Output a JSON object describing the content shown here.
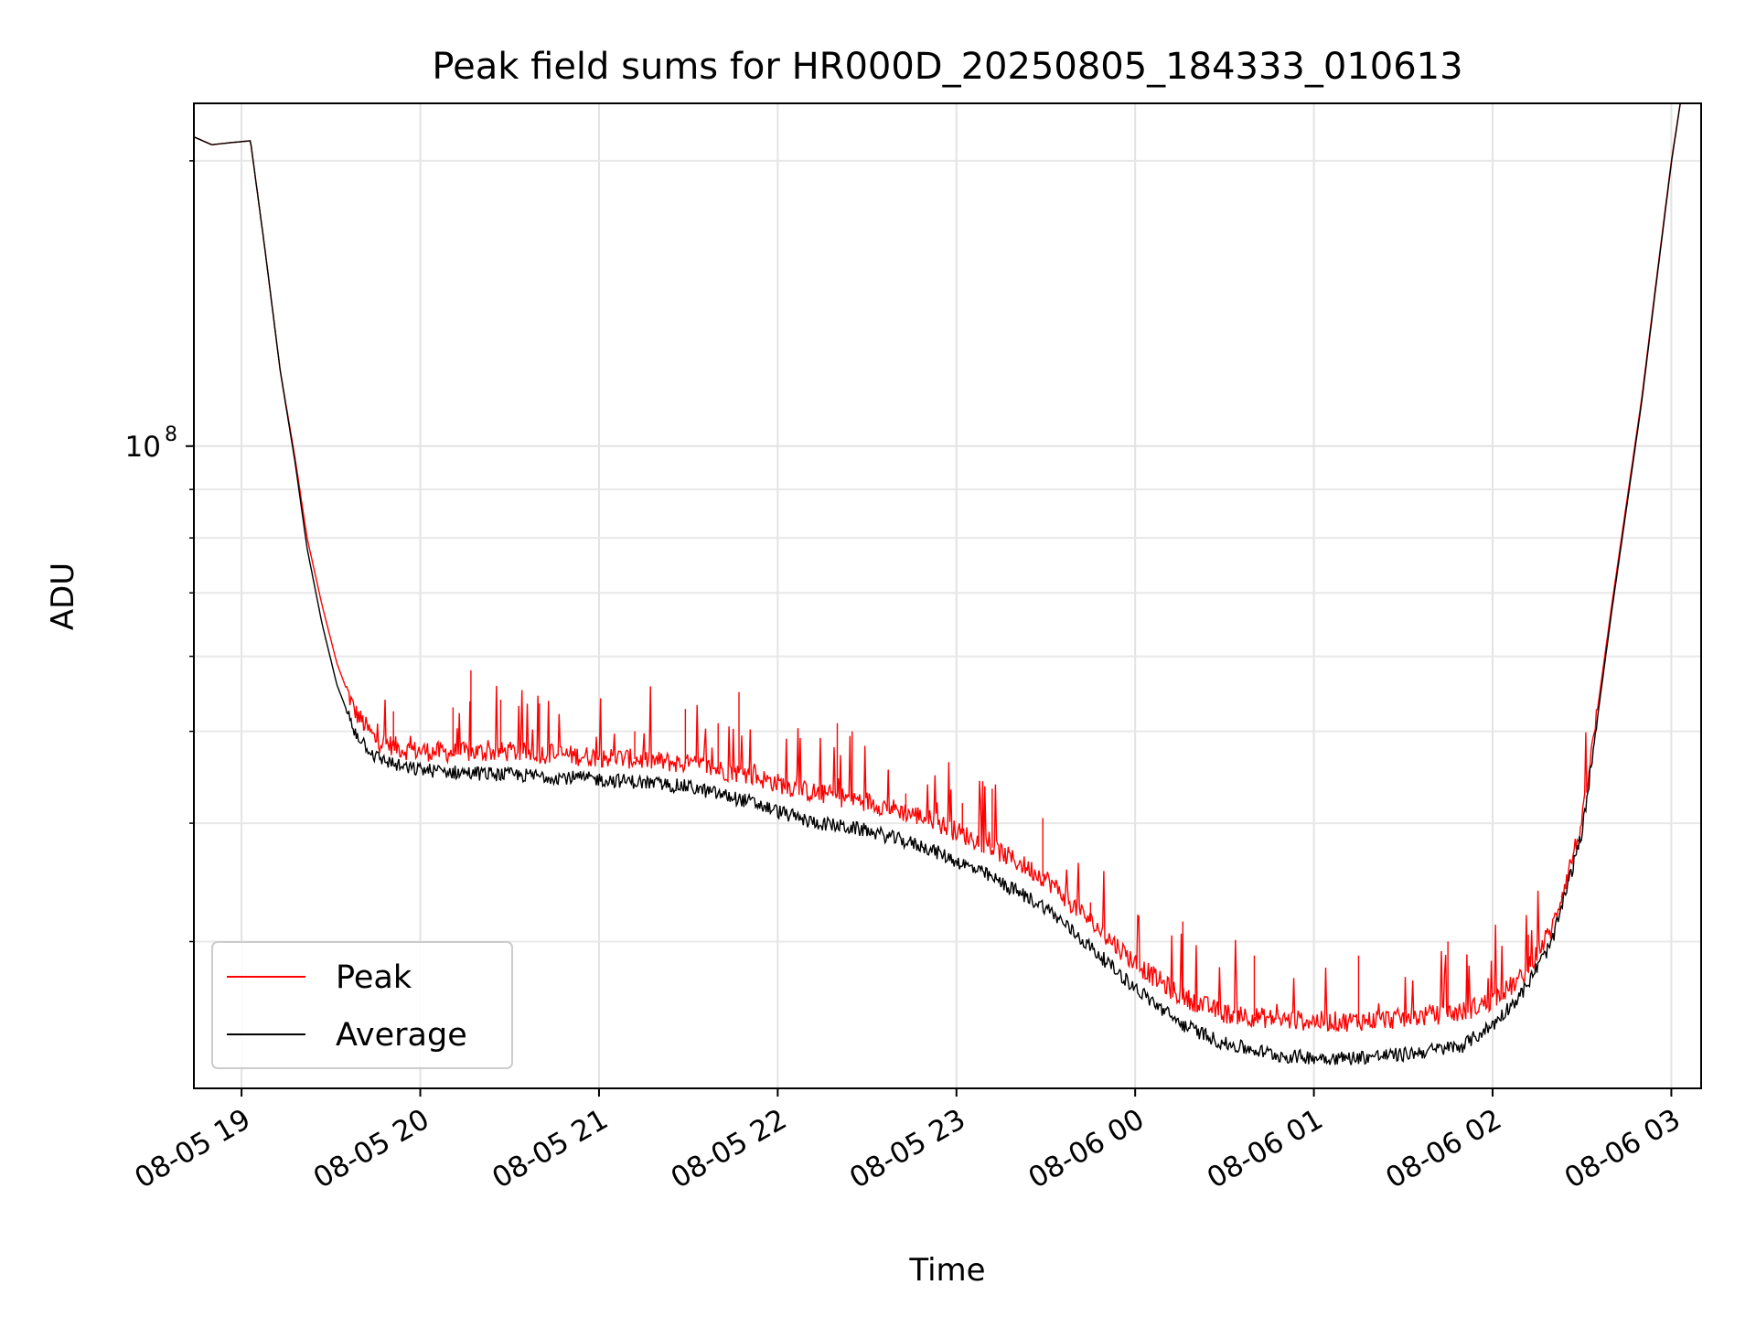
{
  "chart_data": {
    "type": "line",
    "title": "Peak field sums for HR000D_20250805_184333_010613",
    "xlabel": "Time",
    "ylabel": "ADU",
    "yscale": "log",
    "ylim": [
      21000000,
      230000000
    ],
    "xlim": [
      "2025-08-05 18:44",
      "2025-08-06 03:10"
    ],
    "grid": true,
    "legend_position": "lower-left",
    "xticks": [
      {
        "t": "2025-08-05 19:00",
        "label": "08-05 19"
      },
      {
        "t": "2025-08-05 20:00",
        "label": "08-05 20"
      },
      {
        "t": "2025-08-05 21:00",
        "label": "08-05 21"
      },
      {
        "t": "2025-08-05 22:00",
        "label": "08-05 22"
      },
      {
        "t": "2025-08-05 23:00",
        "label": "08-05 23"
      },
      {
        "t": "2025-08-06 00:00",
        "label": "08-06 00"
      },
      {
        "t": "2025-08-06 01:00",
        "label": "08-06 01"
      },
      {
        "t": "2025-08-06 02:00",
        "label": "08-06 02"
      },
      {
        "t": "2025-08-06 03:00",
        "label": "08-06 03"
      }
    ],
    "yticks_major": [
      {
        "value": 100000000,
        "label_base": "10",
        "label_exp": "8"
      }
    ],
    "yticks_minor": [
      30000000,
      40000000,
      50000000,
      60000000,
      70000000,
      80000000,
      90000000,
      200000000
    ],
    "series": [
      {
        "name": "Peak",
        "color": "#ff0000",
        "points": [
          [
            "2025-08-05 18:44",
            212000000
          ],
          [
            "2025-08-05 18:50",
            208000000
          ],
          [
            "2025-08-05 18:56",
            209000000
          ],
          [
            "2025-08-05 19:03",
            210000000
          ],
          [
            "2025-08-05 19:08",
            160000000
          ],
          [
            "2025-08-05 19:13",
            120000000
          ],
          [
            "2025-08-05 19:18",
            97000000
          ],
          [
            "2025-08-05 19:22",
            80000000
          ],
          [
            "2025-08-05 19:27",
            68000000
          ],
          [
            "2025-08-05 19:32",
            59000000
          ],
          [
            "2025-08-05 19:38",
            52500000
          ],
          [
            "2025-08-05 19:45",
            49000000
          ],
          [
            "2025-08-05 19:55",
            47800000
          ],
          [
            "2025-08-05 20:10",
            47500000
          ],
          [
            "2025-08-05 20:30",
            47600000
          ],
          [
            "2025-08-05 20:50",
            47200000
          ],
          [
            "2025-08-05 21:10",
            46800000
          ],
          [
            "2025-08-05 21:30",
            46200000
          ],
          [
            "2025-08-05 21:50",
            45000000
          ],
          [
            "2025-08-05 22:10",
            43200000
          ],
          [
            "2025-08-05 22:30",
            42200000
          ],
          [
            "2025-08-05 22:50",
            40500000
          ],
          [
            "2025-08-05 23:10",
            38000000
          ],
          [
            "2025-08-05 23:30",
            35000000
          ],
          [
            "2025-08-05 23:45",
            31500000
          ],
          [
            "2025-08-06 00:00",
            28500000
          ],
          [
            "2025-08-06 00:15",
            26300000
          ],
          [
            "2025-08-06 00:30",
            25200000
          ],
          [
            "2025-08-06 00:50",
            24800000
          ],
          [
            "2025-08-06 01:10",
            24700000
          ],
          [
            "2025-08-06 01:30",
            24900000
          ],
          [
            "2025-08-06 01:50",
            25300000
          ],
          [
            "2025-08-06 02:00",
            26000000
          ],
          [
            "2025-08-06 02:10",
            27500000
          ],
          [
            "2025-08-06 02:20",
            31000000
          ],
          [
            "2025-08-06 02:30",
            40000000
          ],
          [
            "2025-08-06 02:40",
            68000000
          ],
          [
            "2025-08-06 02:50",
            112000000
          ],
          [
            "2025-08-06 02:55",
            150000000
          ],
          [
            "2025-08-06 03:00",
            200000000
          ],
          [
            "2025-08-06 03:03",
            230000000
          ]
        ]
      },
      {
        "name": "Average",
        "color": "#000000",
        "points": [
          [
            "2025-08-05 18:44",
            212000000
          ],
          [
            "2025-08-05 18:50",
            208000000
          ],
          [
            "2025-08-05 18:56",
            209000000
          ],
          [
            "2025-08-05 19:03",
            210000000
          ],
          [
            "2025-08-05 19:08",
            160000000
          ],
          [
            "2025-08-05 19:13",
            120000000
          ],
          [
            "2025-08-05 19:18",
            96000000
          ],
          [
            "2025-08-05 19:22",
            78000000
          ],
          [
            "2025-08-05 19:27",
            65000000
          ],
          [
            "2025-08-05 19:32",
            56000000
          ],
          [
            "2025-08-05 19:38",
            50000000
          ],
          [
            "2025-08-05 19:45",
            47000000
          ],
          [
            "2025-08-05 19:55",
            45700000
          ],
          [
            "2025-08-05 20:10",
            45300000
          ],
          [
            "2025-08-05 20:30",
            45000000
          ],
          [
            "2025-08-05 20:50",
            44700000
          ],
          [
            "2025-08-05 21:10",
            44300000
          ],
          [
            "2025-08-05 21:30",
            43700000
          ],
          [
            "2025-08-05 21:50",
            42200000
          ],
          [
            "2025-08-05 22:10",
            40200000
          ],
          [
            "2025-08-05 22:30",
            39300000
          ],
          [
            "2025-08-05 22:50",
            37700000
          ],
          [
            "2025-08-05 23:10",
            35300000
          ],
          [
            "2025-08-05 23:30",
            32600000
          ],
          [
            "2025-08-05 23:45",
            29600000
          ],
          [
            "2025-08-06 00:00",
            26800000
          ],
          [
            "2025-08-06 00:15",
            24600000
          ],
          [
            "2025-08-06 00:30",
            23400000
          ],
          [
            "2025-08-06 00:50",
            22700000
          ],
          [
            "2025-08-06 01:10",
            22600000
          ],
          [
            "2025-08-06 01:30",
            22800000
          ],
          [
            "2025-08-06 01:50",
            23300000
          ],
          [
            "2025-08-06 02:00",
            24500000
          ],
          [
            "2025-08-06 02:10",
            26500000
          ],
          [
            "2025-08-06 02:20",
            30000000
          ],
          [
            "2025-08-06 02:30",
            39000000
          ],
          [
            "2025-08-06 02:40",
            67000000
          ],
          [
            "2025-08-06 02:50",
            111000000
          ],
          [
            "2025-08-06 02:55",
            149000000
          ],
          [
            "2025-08-06 03:00",
            199000000
          ],
          [
            "2025-08-06 03:03",
            230000000
          ]
        ]
      }
    ],
    "spikes": [
      [
        "2025-08-05 20:17",
        58000000
      ],
      [
        "2025-08-05 20:11",
        53000000
      ],
      [
        "2025-08-05 20:27",
        54000000
      ],
      [
        "2025-08-05 20:40",
        53500000
      ],
      [
        "2025-08-05 19:51",
        52500000
      ],
      [
        "2025-08-05 21:29",
        52800000
      ],
      [
        "2025-08-05 21:47",
        55000000
      ],
      [
        "2025-08-05 21:40",
        51000000
      ],
      [
        "2025-08-05 21:12",
        50000000
      ],
      [
        "2025-08-05 22:20",
        51000000
      ],
      [
        "2025-08-05 22:25",
        50000000
      ],
      [
        "2025-08-05 22:43",
        43000000
      ],
      [
        "2025-08-05 23:12",
        43500000
      ],
      [
        "2025-08-05 23:02",
        42000000
      ],
      [
        "2025-08-05 23:29",
        40500000
      ],
      [
        "2025-08-05 23:45",
        33000000
      ],
      [
        "2025-08-06 00:16",
        31500000
      ],
      [
        "2025-08-06 00:40",
        29000000
      ],
      [
        "2025-08-06 01:15",
        29000000
      ],
      [
        "2025-08-06 01:45",
        30000000
      ],
      [
        "2025-08-06 02:12",
        30500000
      ],
      [
        "2025-08-06 02:23",
        33500000
      ]
    ]
  },
  "legend": {
    "peak_label": "Peak",
    "average_label": "Average"
  }
}
